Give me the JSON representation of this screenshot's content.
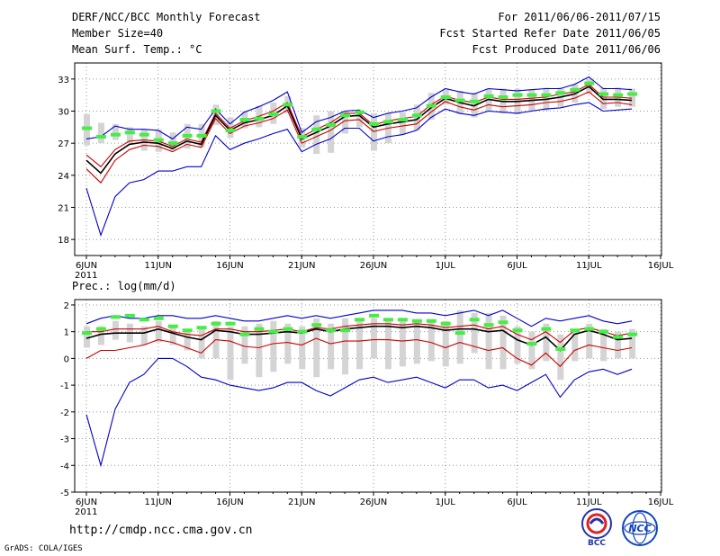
{
  "header": {
    "title_left_1": "DERF/NCC/BCC Monthly Forecast",
    "title_left_2": "Member Size=40",
    "title_left_3": "Mean Surf. Temp.: °C",
    "title_right_1": "For 2011/06/06-2011/07/15",
    "title_right_2": "Fcst Started Refer Date 2011/06/05",
    "title_right_3": "Fcst Produced Date 2011/06/06"
  },
  "footer": {
    "url": "http://cmdp.ncc.cma.gov.cn",
    "credit": "GrADS: COLA/IGES",
    "logo1_text": "BCC",
    "logo2_text": "NCC"
  },
  "colors": {
    "max_min": "#0000cc",
    "mean": "#000000",
    "spread": "#cc0000",
    "climate": "#44ee44",
    "boxes": "#d4d4d4",
    "grid": "#999999"
  },
  "chart_data": [
    {
      "type": "line",
      "title": "Mean Surf. Temp.: °C",
      "ylim": [
        16.5,
        34.5
      ],
      "yticks": [
        18,
        21,
        24,
        27,
        30,
        33
      ],
      "xlim": [
        0,
        40
      ],
      "x_tick_labels": [
        {
          "day": 0,
          "label": "6JUN",
          "sub": "2011"
        },
        {
          "day": 5,
          "label": "11JUN"
        },
        {
          "day": 10,
          "label": "16JUN"
        },
        {
          "day": 15,
          "label": "21JUN"
        },
        {
          "day": 20,
          "label": "26JUN"
        },
        {
          "day": 25,
          "label": "1JUL"
        },
        {
          "day": 30,
          "label": "6JUL"
        },
        {
          "day": 35,
          "label": "11JUL"
        },
        {
          "day": 40,
          "label": "16JUL"
        }
      ],
      "series": [
        {
          "name": "max",
          "color_key": "max_min",
          "values": [
            27.4,
            27.6,
            28.6,
            28.3,
            28.3,
            28.2,
            27.4,
            28.5,
            28.3,
            30.2,
            28.8,
            29.9,
            30.4,
            31.0,
            31.8,
            28.0,
            29.0,
            29.4,
            30.0,
            30.1,
            29.4,
            29.8,
            30.0,
            30.3,
            31.3,
            32.1,
            31.8,
            31.6,
            32.1,
            32.0,
            31.9,
            32.0,
            32.1,
            32.1,
            32.5,
            33.2,
            32.1,
            32.1,
            32.0
          ]
        },
        {
          "name": "upper",
          "color_key": "spread",
          "values": [
            25.9,
            24.8,
            26.4,
            27.2,
            27.3,
            27.2,
            26.7,
            27.4,
            27.1,
            29.8,
            28.4,
            29.1,
            29.5,
            30.0,
            30.8,
            27.6,
            28.3,
            28.9,
            29.8,
            29.8,
            28.7,
            29.1,
            29.3,
            29.5,
            30.6,
            31.4,
            31.0,
            30.8,
            31.3,
            31.1,
            31.1,
            31.2,
            31.3,
            31.6,
            31.8,
            32.5,
            31.3,
            31.3,
            31.2
          ]
        },
        {
          "name": "mean",
          "color_key": "mean",
          "values": [
            25.4,
            24.2,
            26.0,
            26.9,
            27.1,
            27.0,
            26.5,
            27.2,
            26.9,
            29.6,
            28.2,
            28.9,
            29.2,
            29.6,
            30.5,
            27.4,
            28.0,
            28.6,
            29.5,
            29.6,
            28.5,
            28.8,
            29.0,
            29.2,
            30.3,
            31.2,
            30.8,
            30.5,
            31.1,
            30.9,
            30.9,
            31.0,
            31.1,
            31.3,
            31.6,
            32.3,
            31.1,
            31.1,
            31.0
          ]
        },
        {
          "name": "lower",
          "color_key": "spread",
          "values": [
            24.6,
            23.3,
            25.4,
            26.4,
            26.8,
            26.7,
            26.2,
            26.9,
            26.6,
            29.3,
            27.9,
            28.6,
            28.9,
            29.3,
            30.1,
            27.0,
            27.6,
            28.2,
            29.1,
            29.2,
            28.1,
            28.4,
            28.6,
            28.8,
            29.9,
            30.9,
            30.4,
            30.1,
            30.6,
            30.4,
            30.5,
            30.6,
            30.8,
            30.9,
            31.2,
            31.8,
            30.7,
            30.8,
            30.6
          ]
        },
        {
          "name": "min",
          "color_key": "max_min",
          "values": [
            22.8,
            18.4,
            22.0,
            23.3,
            23.6,
            24.4,
            24.4,
            24.8,
            24.8,
            27.7,
            26.4,
            27.0,
            27.4,
            27.9,
            28.3,
            26.2,
            26.9,
            27.4,
            28.4,
            28.4,
            27.2,
            27.6,
            27.8,
            28.2,
            29.4,
            30.2,
            29.8,
            29.6,
            30.0,
            29.9,
            29.8,
            30.0,
            30.2,
            30.3,
            30.6,
            30.8,
            30.0,
            30.1,
            30.2
          ]
        },
        {
          "name": "climate",
          "color_key": "climate",
          "style": "marker",
          "values": [
            28.4,
            27.6,
            27.8,
            28.0,
            27.8,
            27.3,
            27.0,
            27.7,
            27.7,
            30.0,
            28.2,
            29.2,
            29.3,
            29.7,
            30.6,
            27.6,
            28.3,
            28.7,
            29.6,
            29.9,
            28.8,
            29.0,
            29.2,
            29.6,
            30.5,
            31.3,
            31.0,
            30.9,
            31.4,
            31.3,
            31.5,
            31.5,
            31.5,
            31.7,
            32.0,
            32.6,
            31.6,
            31.5,
            31.6
          ]
        }
      ],
      "boxes": {
        "color_key": "boxes",
        "low": [
          26.8,
          27.0,
          27.3,
          27.0,
          26.3,
          26.2,
          26.3,
          26.5,
          26.6,
          28.7,
          27.5,
          28.4,
          28.5,
          28.8,
          29.8,
          26.6,
          26.0,
          26.1,
          27.9,
          28.5,
          26.3,
          27.0,
          27.8,
          28.2,
          29.2,
          30.6,
          29.7,
          29.4,
          30.0,
          29.8,
          29.7,
          30.0,
          30.0,
          30.4,
          30.8,
          31.6,
          30.2,
          30.4,
          30.4
        ],
        "high": [
          29.7,
          28.9,
          28.8,
          28.5,
          28.3,
          28.3,
          28.0,
          28.8,
          28.8,
          30.6,
          29.4,
          30.0,
          30.5,
          30.8,
          31.4,
          28.4,
          29.6,
          30.0,
          30.0,
          30.0,
          29.8,
          29.8,
          29.9,
          30.6,
          31.7,
          32.0,
          31.9,
          31.7,
          32.1,
          32.1,
          32.1,
          32.0,
          32.2,
          32.2,
          32.5,
          33.0,
          32.2,
          32.2,
          32.1
        ]
      }
    },
    {
      "type": "line",
      "title": "Prec.: log(mm/d)",
      "ylim": [
        -5,
        2.2
      ],
      "yticks": [
        -5,
        -4,
        -3,
        -2,
        -1,
        0,
        1,
        2
      ],
      "xlim": [
        0,
        40
      ],
      "x_tick_labels": [
        {
          "day": 0,
          "label": "6JUN",
          "sub": "2011"
        },
        {
          "day": 5,
          "label": "11JUN"
        },
        {
          "day": 10,
          "label": "16JUN"
        },
        {
          "day": 15,
          "label": "21JUN"
        },
        {
          "day": 20,
          "label": "26JUN"
        },
        {
          "day": 25,
          "label": "1JUL"
        },
        {
          "day": 30,
          "label": "6JUL"
        },
        {
          "day": 35,
          "label": "11JUL"
        },
        {
          "day": 40,
          "label": "16JUL"
        }
      ],
      "series": [
        {
          "name": "max",
          "color_key": "max_min",
          "values": [
            1.3,
            1.5,
            1.6,
            1.5,
            1.5,
            1.6,
            1.6,
            1.5,
            1.5,
            1.6,
            1.5,
            1.4,
            1.4,
            1.5,
            1.6,
            1.5,
            1.6,
            1.5,
            1.6,
            1.7,
            1.8,
            1.8,
            1.8,
            1.7,
            1.7,
            1.6,
            1.7,
            1.8,
            1.6,
            1.8,
            1.5,
            1.2,
            1.5,
            1.4,
            1.5,
            1.6,
            1.4,
            1.3,
            1.4
          ]
        },
        {
          "name": "upper",
          "color_key": "spread",
          "values": [
            1.0,
            1.0,
            1.1,
            1.1,
            1.1,
            1.2,
            1.0,
            0.9,
            0.85,
            1.1,
            1.1,
            1.0,
            1.0,
            1.05,
            1.1,
            1.0,
            1.15,
            1.1,
            1.2,
            1.25,
            1.3,
            1.3,
            1.25,
            1.3,
            1.25,
            1.15,
            1.2,
            1.25,
            1.1,
            1.2,
            0.9,
            0.7,
            1.0,
            0.6,
            1.05,
            1.15,
            1.0,
            0.85,
            0.95
          ]
        },
        {
          "name": "mean",
          "color_key": "mean",
          "values": [
            0.75,
            0.9,
            0.95,
            0.95,
            0.95,
            1.1,
            0.95,
            0.8,
            0.7,
            1.05,
            1.0,
            0.9,
            0.9,
            0.95,
            1.0,
            0.95,
            1.1,
            1.0,
            1.1,
            1.15,
            1.2,
            1.2,
            1.15,
            1.2,
            1.15,
            1.05,
            1.1,
            1.1,
            1.0,
            1.05,
            0.7,
            0.5,
            0.8,
            0.3,
            0.9,
            1.05,
            0.9,
            0.7,
            0.75
          ]
        },
        {
          "name": "lower",
          "color_key": "spread",
          "values": [
            0.0,
            0.3,
            0.3,
            0.4,
            0.5,
            0.7,
            0.6,
            0.4,
            0.2,
            0.7,
            0.65,
            0.45,
            0.4,
            0.55,
            0.6,
            0.5,
            0.75,
            0.55,
            0.65,
            0.65,
            0.7,
            0.7,
            0.65,
            0.7,
            0.6,
            0.4,
            0.6,
            0.45,
            0.3,
            0.4,
            0.0,
            -0.25,
            0.2,
            -0.3,
            0.3,
            0.5,
            0.4,
            0.3,
            0.4
          ]
        },
        {
          "name": "min",
          "color_key": "max_min",
          "values": [
            -2.1,
            -4.0,
            -1.9,
            -0.9,
            -0.6,
            0.0,
            0.0,
            -0.3,
            -0.7,
            -0.8,
            -1.0,
            -1.1,
            -1.2,
            -1.1,
            -0.9,
            -0.9,
            -1.2,
            -1.4,
            -1.1,
            -0.8,
            -0.7,
            -0.9,
            -0.8,
            -0.7,
            -0.9,
            -1.1,
            -0.8,
            -0.8,
            -1.1,
            -1.0,
            -1.2,
            -0.9,
            -0.6,
            -1.45,
            -0.8,
            -0.5,
            -0.4,
            -0.6,
            -0.4
          ]
        },
        {
          "name": "climate",
          "color_key": "climate",
          "style": "marker",
          "values": [
            0.95,
            1.1,
            1.55,
            1.6,
            1.45,
            1.5,
            1.2,
            1.05,
            1.15,
            1.3,
            1.3,
            0.9,
            1.1,
            1.0,
            1.1,
            1.0,
            1.25,
            1.05,
            1.05,
            1.45,
            1.6,
            1.45,
            1.45,
            1.4,
            1.4,
            1.3,
            0.95,
            1.45,
            1.25,
            1.35,
            1.05,
            0.55,
            1.1,
            0.35,
            1.05,
            1.1,
            1.0,
            0.8,
            0.9
          ]
        }
      ],
      "boxes": {
        "color_key": "boxes",
        "low": [
          0.4,
          0.5,
          0.7,
          0.6,
          0.5,
          0.6,
          0.5,
          0.3,
          0.0,
          0.0,
          -0.8,
          -0.2,
          -0.7,
          -0.5,
          -0.2,
          -0.4,
          -0.7,
          -0.4,
          -0.6,
          -0.4,
          0.0,
          -0.4,
          -0.3,
          -0.2,
          -0.1,
          -0.3,
          -0.2,
          0.2,
          -0.4,
          -0.4,
          -0.2,
          -0.4,
          -0.1,
          -0.8,
          -0.1,
          0.0,
          -0.1,
          0.0,
          0.0
        ],
        "high": [
          1.2,
          1.2,
          1.4,
          1.3,
          1.2,
          1.4,
          1.2,
          1.0,
          1.1,
          1.4,
          1.2,
          1.2,
          1.3,
          1.4,
          1.3,
          1.2,
          1.5,
          1.3,
          1.5,
          1.5,
          1.5,
          1.5,
          1.4,
          1.4,
          1.4,
          1.4,
          1.8,
          1.7,
          1.7,
          1.6,
          1.2,
          1.0,
          1.3,
          0.9,
          1.1,
          1.3,
          1.1,
          1.0,
          1.1
        ]
      }
    }
  ]
}
